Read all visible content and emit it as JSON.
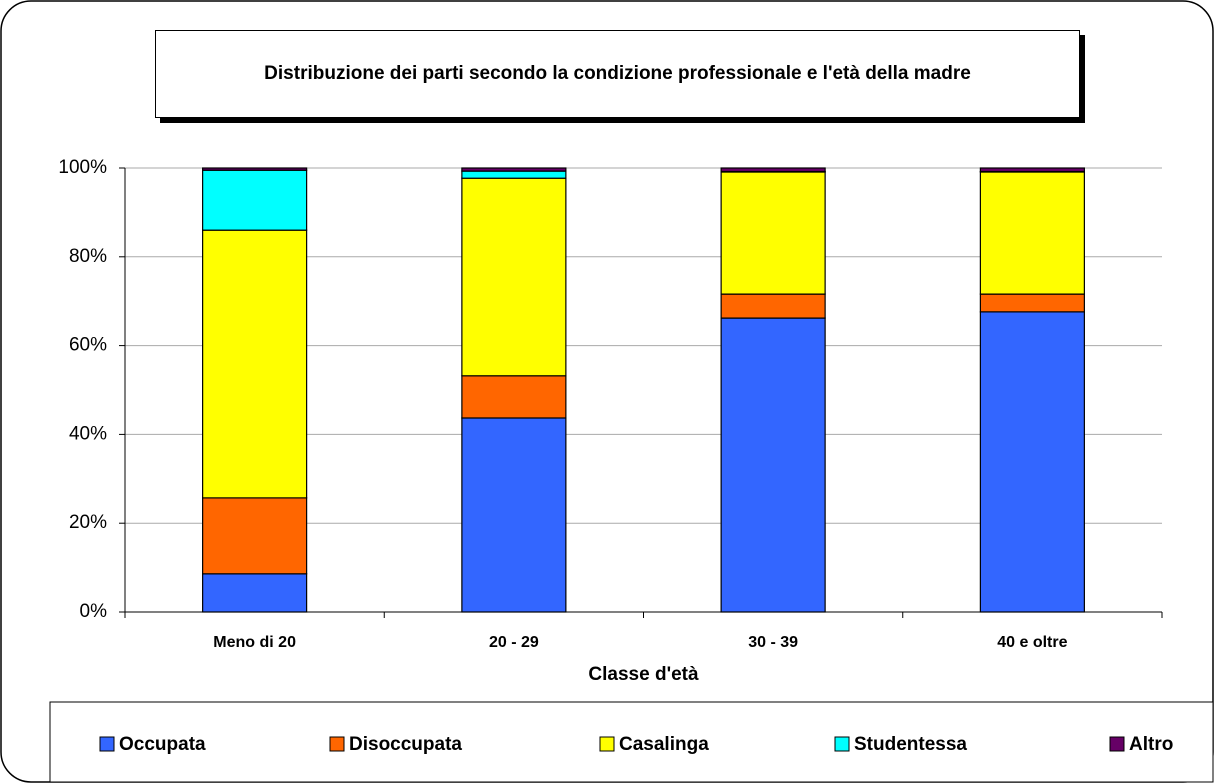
{
  "chart_data": {
    "type": "stacked_bar",
    "title": "Distribuzione dei parti secondo la condizione professionale e l'età della madre",
    "xlabel": "Classe d'età",
    "categories": [
      "Meno di 20",
      "20 - 29",
      "30 - 39",
      "40 e oltre"
    ],
    "series": [
      {
        "name": "Occupata",
        "color": "#3366ff",
        "values": [
          8.6,
          43.7,
          66.2,
          67.6
        ]
      },
      {
        "name": "Disoccupata",
        "color": "#ff6600",
        "values": [
          17.1,
          9.5,
          5.4,
          4.0
        ]
      },
      {
        "name": "Casalinga",
        "color": "#ffff00",
        "values": [
          60.3,
          44.5,
          27.5,
          27.5
        ]
      },
      {
        "name": "Studentessa",
        "color": "#00ffff",
        "values": [
          13.5,
          1.6,
          0.1,
          0.1
        ]
      },
      {
        "name": "Altro",
        "color": "#660066",
        "values": [
          0.5,
          0.7,
          0.8,
          0.8
        ]
      }
    ],
    "ylim": [
      0,
      100
    ],
    "yticks": [
      {
        "value": 0,
        "label": "0%"
      },
      {
        "value": 20,
        "label": "20%"
      },
      {
        "value": 40,
        "label": "40%"
      },
      {
        "value": 60,
        "label": "60%"
      },
      {
        "value": 80,
        "label": "80%"
      },
      {
        "value": 100,
        "label": "100%"
      }
    ],
    "grid": true,
    "legend": "bottom"
  }
}
